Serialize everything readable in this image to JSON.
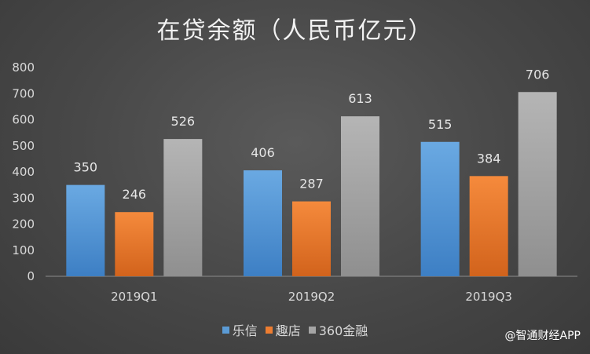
{
  "chart_data": {
    "type": "bar",
    "title": "在贷余额（人民币亿元）",
    "categories": [
      "2019Q1",
      "2019Q2",
      "2019Q3"
    ],
    "series": [
      {
        "name": "乐信",
        "values": [
          350,
          406,
          515
        ],
        "color": "#5b9bd5"
      },
      {
        "name": "趣店",
        "values": [
          246,
          287,
          384
        ],
        "color": "#ed7d31"
      },
      {
        "name": "360金融",
        "values": [
          526,
          613,
          706
        ],
        "color": "#a5a5a5"
      }
    ],
    "ylim": [
      0,
      800
    ],
    "yticks": [
      "0",
      "100",
      "200",
      "300",
      "400",
      "500",
      "600",
      "700",
      "800"
    ],
    "grid": false,
    "legend": "bottom"
  },
  "watermark": "@智通财经APP"
}
